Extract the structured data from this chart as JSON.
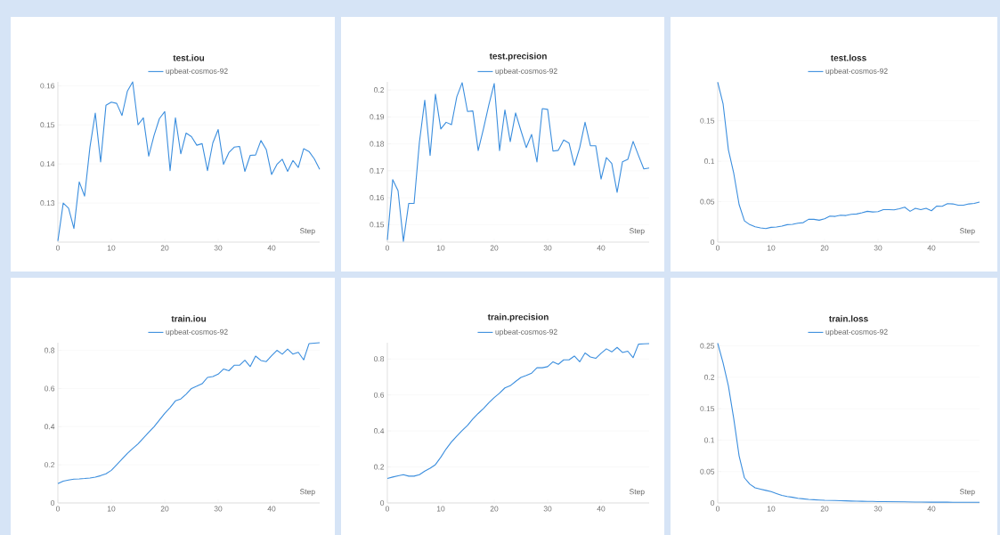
{
  "chart_data": [
    {
      "type": "line",
      "title": "test.iou",
      "xlabel": "Step",
      "legend": "top",
      "grid": "y",
      "marker": "none",
      "line_style": "solid",
      "x": [
        0,
        1,
        2,
        3,
        4,
        5,
        6,
        7,
        8,
        9,
        10,
        11,
        12,
        13,
        14,
        15,
        16,
        17,
        18,
        19,
        20,
        21,
        22,
        23,
        24,
        25,
        26,
        27,
        28,
        29,
        30,
        31,
        32,
        33,
        34,
        35,
        36,
        37,
        38,
        39,
        40,
        41,
        42,
        43,
        44,
        45,
        46,
        47,
        48,
        49
      ],
      "series": [
        {
          "name": "upbeat-cosmos-92",
          "color": "#3b8ede",
          "values": [
            0.1203,
            0.13,
            0.1287,
            0.1235,
            0.1354,
            0.1318,
            0.1443,
            0.153,
            0.1405,
            0.155,
            0.1558,
            0.1555,
            0.1524,
            0.1586,
            0.161,
            0.15,
            0.1518,
            0.142,
            0.1473,
            0.1516,
            0.1534,
            0.1383,
            0.1518,
            0.1426,
            0.1479,
            0.147,
            0.1448,
            0.1452,
            0.1383,
            0.1454,
            0.1488,
            0.1399,
            0.1429,
            0.1443,
            0.1445,
            0.1381,
            0.1422,
            0.1423,
            0.146,
            0.1437,
            0.1373,
            0.1399,
            0.1412,
            0.1381,
            0.1409,
            0.1391,
            0.1439,
            0.1432,
            0.1413,
            0.1386
          ]
        }
      ],
      "xlim": [
        0,
        49
      ],
      "ylim": [
        0.12,
        0.161
      ],
      "xticks": [
        0,
        10,
        20,
        30,
        40
      ],
      "yticks": [
        0.13,
        0.14,
        0.15,
        0.16
      ]
    },
    {
      "type": "line",
      "title": "test.precision",
      "xlabel": "Step",
      "legend": "top",
      "grid": "y",
      "marker": "none",
      "line_style": "solid",
      "x": [
        0,
        1,
        2,
        3,
        4,
        5,
        6,
        7,
        8,
        9,
        10,
        11,
        12,
        13,
        14,
        15,
        16,
        17,
        18,
        19,
        20,
        21,
        22,
        23,
        24,
        25,
        26,
        27,
        28,
        29,
        30,
        31,
        32,
        33,
        34,
        35,
        36,
        37,
        38,
        39,
        40,
        41,
        42,
        43,
        44,
        45,
        46,
        47,
        48,
        49
      ],
      "series": [
        {
          "name": "upbeat-cosmos-92",
          "color": "#3b8ede",
          "values": [
            0.1443,
            0.1667,
            0.1626,
            0.1438,
            0.1579,
            0.1579,
            0.1806,
            0.1962,
            0.1757,
            0.1984,
            0.1855,
            0.188,
            0.1871,
            0.1975,
            0.2027,
            0.192,
            0.1922,
            0.1775,
            0.1857,
            0.1945,
            0.2024,
            0.1775,
            0.1926,
            0.1808,
            0.1915,
            0.1849,
            0.1786,
            0.1835,
            0.1733,
            0.1931,
            0.1928,
            0.1773,
            0.1776,
            0.1814,
            0.1803,
            0.172,
            0.1786,
            0.188,
            0.1793,
            0.1793,
            0.1669,
            0.1749,
            0.1727,
            0.162,
            0.1733,
            0.1742,
            0.1809,
            0.1757,
            0.1707,
            0.171
          ]
        }
      ],
      "xlim": [
        0,
        49
      ],
      "ylim": [
        0.1435,
        0.203
      ],
      "xticks": [
        0,
        10,
        20,
        30,
        40
      ],
      "yticks": [
        0.15,
        0.16,
        0.17,
        0.18,
        0.19,
        0.2
      ]
    },
    {
      "type": "line",
      "title": "test.loss",
      "xlabel": "Step",
      "legend": "top",
      "grid": "y",
      "marker": "none",
      "line_style": "solid",
      "x": [
        0,
        1,
        2,
        3,
        4,
        5,
        6,
        7,
        8,
        9,
        10,
        11,
        12,
        13,
        14,
        15,
        16,
        17,
        18,
        19,
        20,
        21,
        22,
        23,
        24,
        25,
        26,
        27,
        28,
        29,
        30,
        31,
        32,
        33,
        34,
        35,
        36,
        37,
        38,
        39,
        40,
        41,
        42,
        43,
        44,
        45,
        46,
        47,
        48,
        49
      ],
      "series": [
        {
          "name": "upbeat-cosmos-92",
          "color": "#3b8ede",
          "values": [
            0.1976,
            0.171,
            0.114,
            0.085,
            0.0465,
            0.0263,
            0.0216,
            0.019,
            0.0176,
            0.0168,
            0.0183,
            0.0187,
            0.0198,
            0.0216,
            0.022,
            0.0234,
            0.0241,
            0.0282,
            0.0282,
            0.0271,
            0.0289,
            0.0322,
            0.0318,
            0.0333,
            0.0329,
            0.0344,
            0.0348,
            0.0362,
            0.0381,
            0.0373,
            0.0377,
            0.0402,
            0.0402,
            0.0399,
            0.0413,
            0.0432,
            0.0381,
            0.0417,
            0.0402,
            0.0417,
            0.0388,
            0.0446,
            0.0443,
            0.0476,
            0.0472,
            0.0457,
            0.0457,
            0.0472,
            0.0479,
            0.0494
          ]
        }
      ],
      "xlim": [
        0,
        49
      ],
      "ylim": [
        0,
        0.198
      ],
      "xticks": [
        0,
        10,
        20,
        30,
        40
      ],
      "yticks": [
        0,
        0.05,
        0.1,
        0.15
      ]
    },
    {
      "type": "line",
      "title": "train.iou",
      "xlabel": "Step",
      "legend": "top",
      "grid": "y",
      "marker": "none",
      "line_style": "solid",
      "x": [
        0,
        1,
        2,
        3,
        4,
        5,
        6,
        7,
        8,
        9,
        10,
        11,
        12,
        13,
        14,
        15,
        16,
        17,
        18,
        19,
        20,
        21,
        22,
        23,
        24,
        25,
        26,
        27,
        28,
        29,
        30,
        31,
        32,
        33,
        34,
        35,
        36,
        37,
        38,
        39,
        40,
        41,
        42,
        43,
        44,
        45,
        46,
        47,
        48,
        49
      ],
      "series": [
        {
          "name": "upbeat-cosmos-92",
          "color": "#3b8ede",
          "values": [
            0.101,
            0.114,
            0.12,
            0.125,
            0.126,
            0.128,
            0.131,
            0.135,
            0.143,
            0.153,
            0.171,
            0.2,
            0.23,
            0.26,
            0.285,
            0.31,
            0.34,
            0.37,
            0.4,
            0.435,
            0.47,
            0.5,
            0.535,
            0.545,
            0.57,
            0.6,
            0.612,
            0.625,
            0.658,
            0.663,
            0.675,
            0.702,
            0.693,
            0.722,
            0.722,
            0.748,
            0.715,
            0.77,
            0.747,
            0.741,
            0.772,
            0.8,
            0.78,
            0.807,
            0.78,
            0.79,
            0.75,
            0.835,
            0.838,
            0.84
          ]
        }
      ],
      "xlim": [
        0,
        49
      ],
      "ylim": [
        0,
        0.84
      ],
      "xticks": [
        0,
        10,
        20,
        30,
        40
      ],
      "yticks": [
        0,
        0.2,
        0.4,
        0.6,
        0.8
      ]
    },
    {
      "type": "line",
      "title": "train.precision",
      "xlabel": "Step",
      "legend": "top",
      "grid": "y",
      "marker": "none",
      "line_style": "solid",
      "x": [
        0,
        1,
        2,
        3,
        4,
        5,
        6,
        7,
        8,
        9,
        10,
        11,
        12,
        13,
        14,
        15,
        16,
        17,
        18,
        19,
        20,
        21,
        22,
        23,
        24,
        25,
        26,
        27,
        28,
        29,
        30,
        31,
        32,
        33,
        34,
        35,
        36,
        37,
        38,
        39,
        40,
        41,
        42,
        43,
        44,
        45,
        46,
        47,
        48,
        49
      ],
      "series": [
        {
          "name": "upbeat-cosmos-92",
          "color": "#3b8ede",
          "values": [
            0.136,
            0.144,
            0.151,
            0.157,
            0.149,
            0.149,
            0.157,
            0.177,
            0.193,
            0.213,
            0.254,
            0.3,
            0.339,
            0.372,
            0.402,
            0.431,
            0.467,
            0.497,
            0.525,
            0.557,
            0.585,
            0.61,
            0.639,
            0.651,
            0.675,
            0.697,
            0.708,
            0.721,
            0.751,
            0.751,
            0.757,
            0.784,
            0.77,
            0.795,
            0.795,
            0.816,
            0.784,
            0.833,
            0.811,
            0.803,
            0.831,
            0.856,
            0.839,
            0.864,
            0.836,
            0.843,
            0.807,
            0.882,
            0.884,
            0.885
          ]
        }
      ],
      "xlim": [
        0,
        49
      ],
      "ylim": [
        0,
        0.89
      ],
      "xticks": [
        0,
        10,
        20,
        30,
        40
      ],
      "yticks": [
        0,
        0.2,
        0.4,
        0.6,
        0.8
      ]
    },
    {
      "type": "line",
      "title": "train.loss",
      "xlabel": "Step",
      "legend": "top",
      "grid": "y",
      "marker": "none",
      "line_style": "solid",
      "x": [
        0,
        1,
        2,
        3,
        4,
        5,
        6,
        7,
        8,
        9,
        10,
        11,
        12,
        13,
        14,
        15,
        16,
        17,
        18,
        19,
        20,
        21,
        22,
        23,
        24,
        25,
        26,
        27,
        28,
        29,
        30,
        31,
        32,
        33,
        34,
        35,
        36,
        37,
        38,
        39,
        40,
        41,
        42,
        43,
        44,
        45,
        46,
        47,
        48,
        49
      ],
      "series": [
        {
          "name": "upbeat-cosmos-92",
          "color": "#3b8ede",
          "values": [
            0.254,
            0.223,
            0.186,
            0.134,
            0.075,
            0.04,
            0.03,
            0.024,
            0.022,
            0.02,
            0.018,
            0.015,
            0.012,
            0.0103,
            0.009,
            0.0075,
            0.0066,
            0.0056,
            0.0052,
            0.0047,
            0.0042,
            0.004,
            0.0038,
            0.0035,
            0.0033,
            0.003,
            0.0028,
            0.0027,
            0.0025,
            0.0024,
            0.0022,
            0.0021,
            0.002,
            0.0019,
            0.0018,
            0.0017,
            0.0016,
            0.0015,
            0.0015,
            0.0014,
            0.0013,
            0.0013,
            0.0012,
            0.0012,
            0.0011,
            0.0011,
            0.001,
            0.001,
            0.001,
            0.001
          ]
        }
      ],
      "xlim": [
        0,
        49
      ],
      "ylim": [
        0,
        0.255
      ],
      "xticks": [
        0,
        10,
        20,
        30,
        40
      ],
      "yticks": [
        0,
        0.05,
        0.1,
        0.15,
        0.2,
        0.25
      ]
    }
  ]
}
